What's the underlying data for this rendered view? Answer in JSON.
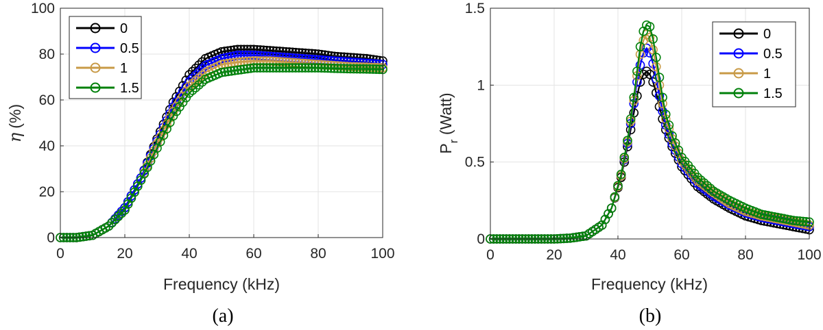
{
  "colors": {
    "0": "#000000",
    "0.5": "#0000ff",
    "1": "#c89a46",
    "1.5": "#00800a"
  },
  "chart_data": [
    {
      "type": "line",
      "caption": "(a)",
      "xlabel": "Frequency (kHz)",
      "ylabel_symbol": "η",
      "ylabel_unit": "(%)",
      "xlim": [
        0,
        100
      ],
      "ylim": [
        0,
        100
      ],
      "xticks": [
        "0",
        "20",
        "40",
        "60",
        "80",
        "100"
      ],
      "yticks": [
        "0",
        "20",
        "40",
        "60",
        "80",
        "100"
      ],
      "grid": true,
      "legend_position": "top-left",
      "x": [
        0,
        5,
        10,
        15,
        20,
        25,
        30,
        35,
        40,
        45,
        50,
        55,
        60,
        65,
        70,
        75,
        80,
        85,
        90,
        95,
        100
      ],
      "series": [
        {
          "name": "0",
          "values": [
            0,
            0,
            1,
            5,
            13,
            26,
            43,
            59,
            71,
            78,
            81,
            82,
            82,
            81.5,
            81,
            80.5,
            80,
            79,
            78.5,
            78,
            77
          ]
        },
        {
          "name": "0.5",
          "values": [
            0,
            0,
            1,
            5,
            13,
            26,
            42,
            57,
            68,
            75,
            78,
            79.5,
            79.5,
            79,
            78.5,
            78,
            77.5,
            77,
            76.5,
            76,
            75.5
          ]
        },
        {
          "name": "1",
          "values": [
            0,
            0,
            1,
            5,
            12,
            25,
            41,
            55,
            66,
            72,
            75.5,
            76.5,
            77,
            77,
            76.5,
            76,
            75.5,
            75,
            74.5,
            74.3,
            74
          ]
        },
        {
          "name": "1.5",
          "values": [
            0,
            0,
            1,
            5,
            12,
            25,
            39,
            53,
            63,
            69,
            72,
            73,
            74,
            74,
            74,
            74,
            74,
            73.8,
            73.6,
            73.5,
            73.3
          ]
        }
      ]
    },
    {
      "type": "line",
      "caption": "(b)",
      "xlabel": "Frequency (kHz)",
      "ylabel_main": "P",
      "ylabel_sub": "r",
      "ylabel_unit": " (Watt)",
      "xlim": [
        0,
        100
      ],
      "ylim": [
        0,
        1.5
      ],
      "xticks": [
        "0",
        "20",
        "40",
        "60",
        "80",
        "100"
      ],
      "yticks": [
        "0",
        "0.5",
        "1",
        "1.5"
      ],
      "grid": true,
      "legend_position": "top-right",
      "x": [
        0,
        5,
        10,
        15,
        20,
        25,
        30,
        35,
        38,
        41,
        43,
        45,
        46,
        47,
        48,
        49,
        50,
        51,
        52,
        53,
        54,
        55,
        57,
        60,
        65,
        70,
        75,
        80,
        85,
        90,
        95,
        100
      ],
      "series": [
        {
          "name": "0",
          "values": [
            0,
            0,
            0,
            0,
            0,
            0.005,
            0.02,
            0.09,
            0.2,
            0.4,
            0.6,
            0.82,
            0.93,
            1.02,
            1.07,
            1.09,
            1.07,
            1.02,
            0.95,
            0.86,
            0.78,
            0.71,
            0.6,
            0.47,
            0.34,
            0.26,
            0.2,
            0.15,
            0.12,
            0.1,
            0.08,
            0.06
          ]
        },
        {
          "name": "0.5",
          "values": [
            0,
            0,
            0,
            0,
            0,
            0.005,
            0.02,
            0.09,
            0.2,
            0.41,
            0.62,
            0.88,
            1.02,
            1.13,
            1.21,
            1.24,
            1.21,
            1.14,
            1.04,
            0.93,
            0.83,
            0.74,
            0.62,
            0.49,
            0.36,
            0.28,
            0.22,
            0.17,
            0.14,
            0.12,
            0.1,
            0.08
          ]
        },
        {
          "name": "1",
          "values": [
            0,
            0,
            0,
            0,
            0,
            0.005,
            0.02,
            0.09,
            0.2,
            0.41,
            0.63,
            0.9,
            1.06,
            1.2,
            1.29,
            1.33,
            1.31,
            1.23,
            1.12,
            1.0,
            0.88,
            0.78,
            0.65,
            0.51,
            0.38,
            0.3,
            0.23,
            0.18,
            0.15,
            0.13,
            0.11,
            0.09
          ]
        },
        {
          "name": "1.5",
          "values": [
            0,
            0,
            0,
            0,
            0,
            0.005,
            0.02,
            0.09,
            0.2,
            0.42,
            0.64,
            0.92,
            1.09,
            1.25,
            1.35,
            1.39,
            1.38,
            1.3,
            1.18,
            1.05,
            0.92,
            0.81,
            0.67,
            0.53,
            0.4,
            0.31,
            0.25,
            0.2,
            0.16,
            0.14,
            0.12,
            0.11
          ]
        }
      ]
    }
  ]
}
